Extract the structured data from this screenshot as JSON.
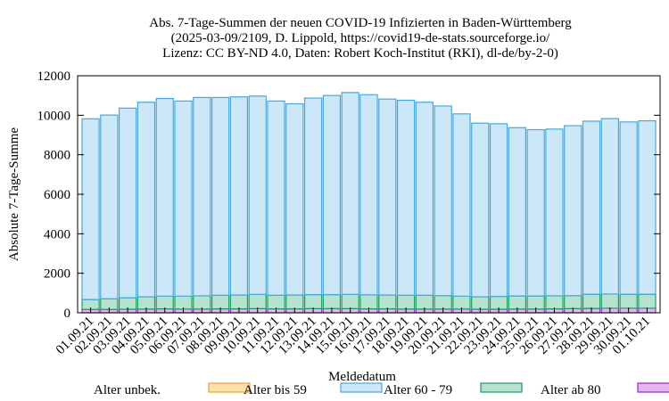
{
  "chart_data": {
    "type": "bar",
    "stacked": true,
    "title": [
      "Abs. 7-Tage-Summen der neuen COVID-19 Infizierten in Baden-Württemberg",
      "(2025-03-09/2109, D. Lippold, https://covid19-de-stats.sourceforge.io/",
      "Lizenz: CC BY-ND 4.0, Daten: Robert Koch-Institut (RKI), dl-de/by-2-0)"
    ],
    "xlabel": "Meldedatum",
    "ylabel": "Absolute 7-Tage-Summe",
    "ylim": [
      0,
      12000
    ],
    "yticks": [
      0,
      2000,
      4000,
      6000,
      8000,
      10000,
      12000
    ],
    "categories": [
      "01.09.21",
      "02.09.21",
      "03.09.21",
      "04.09.21",
      "05.09.21",
      "06.09.21",
      "07.09.21",
      "08.09.21",
      "09.09.21",
      "10.09.21",
      "11.09.21",
      "12.09.21",
      "13.09.21",
      "14.09.21",
      "15.09.21",
      "16.09.21",
      "17.09.21",
      "18.09.21",
      "19.09.21",
      "20.09.21",
      "21.09.21",
      "22.09.21",
      "23.09.21",
      "24.09.21",
      "25.09.21",
      "26.09.21",
      "27.09.21",
      "28.09.21",
      "29.09.21",
      "30.09.21",
      "01.10.21"
    ],
    "series": [
      {
        "name": "Alter unbek.",
        "fill": "#fde3a7",
        "stroke": "#e8a23a",
        "values": [
          0,
          0,
          0,
          0,
          0,
          0,
          0,
          0,
          0,
          0,
          0,
          0,
          0,
          0,
          0,
          0,
          0,
          0,
          0,
          0,
          0,
          0,
          0,
          0,
          0,
          0,
          0,
          0,
          0,
          0,
          0
        ]
      },
      {
        "name": "Alter ab 80",
        "fill": "#e6b5ef",
        "stroke": "#9b27c5",
        "values": [
          170,
          170,
          180,
          190,
          200,
          190,
          190,
          200,
          200,
          210,
          200,
          200,
          210,
          210,
          210,
          200,
          200,
          190,
          190,
          190,
          190,
          180,
          180,
          190,
          190,
          200,
          210,
          220,
          230,
          230,
          230
        ]
      },
      {
        "name": "Alter 60 - 79",
        "fill": "#b6e3d0",
        "stroke": "#1e9a64",
        "values": [
          500,
          540,
          580,
          620,
          640,
          650,
          670,
          690,
          700,
          720,
          690,
          700,
          710,
          710,
          720,
          710,
          700,
          700,
          700,
          680,
          650,
          630,
          650,
          660,
          660,
          660,
          660,
          720,
          720,
          710,
          710
        ]
      },
      {
        "name": "Alter bis 59",
        "fill": "#cce7f8",
        "stroke": "#4aa8d8",
        "values": [
          9150,
          9300,
          9600,
          9850,
          10010,
          9880,
          10040,
          10010,
          10030,
          10040,
          9830,
          9680,
          9950,
          10080,
          10220,
          10130,
          9920,
          9870,
          9770,
          9600,
          9230,
          8790,
          8740,
          8520,
          8420,
          8440,
          8600,
          8760,
          8880,
          8720,
          8780
        ]
      }
    ],
    "legend": {
      "placement": "bottom",
      "order": [
        "Alter unbek.",
        "Alter bis 59",
        "Alter 60 - 79",
        "Alter ab 80"
      ]
    }
  }
}
